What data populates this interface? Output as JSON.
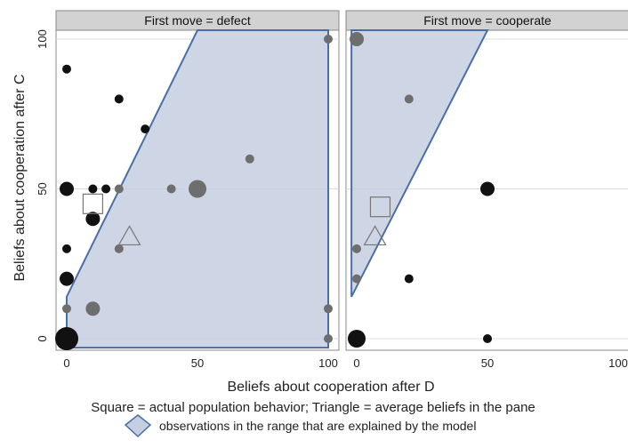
{
  "chart_data": {
    "type": "scatter",
    "xlabel": "Beliefs about cooperation after D",
    "ylabel": "Beliefs about cooperation after C",
    "xlim": [
      0,
      100
    ],
    "ylim": [
      0,
      100
    ],
    "x_ticks": [
      "0",
      "50",
      "100"
    ],
    "y_ticks": [
      "0",
      "50",
      "100"
    ],
    "grid": "horizontal",
    "note": "Square = actual population behavior; Triangle = average beliefs in the pane",
    "legend": {
      "label": "observations in the range that are explained by the model",
      "placement": "bottom",
      "color": "#4a6fa5"
    },
    "colors": {
      "black": "#111111",
      "gray": "#6e6e6e",
      "region_fill": "#c6cfe2",
      "region_edge": "#4a6fa5"
    },
    "panes": [
      {
        "title": "First move = defect",
        "region": [
          [
            0,
            14
          ],
          [
            50,
            103
          ],
          [
            100,
            103
          ],
          [
            100,
            -3
          ],
          [
            0,
            -3
          ]
        ],
        "square": {
          "x": 10,
          "y": 45
        },
        "triangle": {
          "x": 24,
          "y": 34
        },
        "points": [
          {
            "x": 0,
            "y": 90,
            "size": 1,
            "color": "black"
          },
          {
            "x": 20,
            "y": 80,
            "size": 1,
            "color": "black"
          },
          {
            "x": 30,
            "y": 70,
            "size": 1,
            "color": "black"
          },
          {
            "x": 0,
            "y": 50,
            "size": 2,
            "color": "black"
          },
          {
            "x": 10,
            "y": 50,
            "size": 1,
            "color": "black"
          },
          {
            "x": 15,
            "y": 50,
            "size": 1,
            "color": "black"
          },
          {
            "x": 20,
            "y": 50,
            "size": 1,
            "color": "gray"
          },
          {
            "x": 40,
            "y": 50,
            "size": 1,
            "color": "gray"
          },
          {
            "x": 50,
            "y": 50,
            "size": 3,
            "color": "gray"
          },
          {
            "x": 70,
            "y": 60,
            "size": 1,
            "color": "gray"
          },
          {
            "x": 10,
            "y": 40,
            "size": 2,
            "color": "black"
          },
          {
            "x": 20,
            "y": 30,
            "size": 1,
            "color": "gray"
          },
          {
            "x": 0,
            "y": 30,
            "size": 1,
            "color": "black"
          },
          {
            "x": 0,
            "y": 20,
            "size": 2,
            "color": "black"
          },
          {
            "x": 0,
            "y": 10,
            "size": 1,
            "color": "gray"
          },
          {
            "x": 10,
            "y": 10,
            "size": 2,
            "color": "gray"
          },
          {
            "x": 0,
            "y": 0,
            "size": 4,
            "color": "black"
          },
          {
            "x": 100,
            "y": 100,
            "size": 1,
            "color": "gray"
          },
          {
            "x": 100,
            "y": 10,
            "size": 1,
            "color": "gray"
          },
          {
            "x": 100,
            "y": 0,
            "size": 1,
            "color": "gray"
          }
        ]
      },
      {
        "title": "First move = cooperate",
        "region": [
          [
            -2,
            14
          ],
          [
            -2,
            103
          ],
          [
            50,
            103
          ]
        ],
        "square": {
          "x": 9,
          "y": 44
        },
        "triangle": {
          "x": 7,
          "y": 34
        },
        "points": [
          {
            "x": 0,
            "y": 100,
            "size": 2,
            "color": "gray"
          },
          {
            "x": 20,
            "y": 80,
            "size": 1,
            "color": "gray"
          },
          {
            "x": 50,
            "y": 50,
            "size": 2,
            "color": "black"
          },
          {
            "x": 0,
            "y": 30,
            "size": 1,
            "color": "gray"
          },
          {
            "x": 0,
            "y": 20,
            "size": 1,
            "color": "gray"
          },
          {
            "x": 20,
            "y": 20,
            "size": 1,
            "color": "black"
          },
          {
            "x": 0,
            "y": 0,
            "size": 3,
            "color": "black"
          },
          {
            "x": 50,
            "y": 0,
            "size": 1,
            "color": "black"
          }
        ]
      }
    ]
  }
}
